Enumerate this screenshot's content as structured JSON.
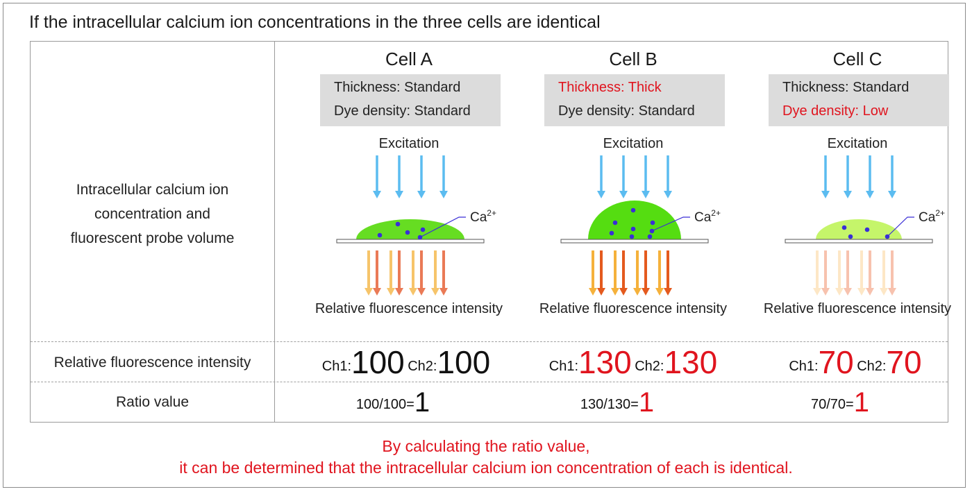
{
  "title": "If the intracellular calcium ion concentrations in the three cells are identical",
  "row_labels": {
    "concentration": [
      "Intracellular calcium ion",
      "concentration and",
      "fluorescent probe volume"
    ],
    "intensity": "Relative fluorescence intensity",
    "ratio": "Ratio value"
  },
  "common": {
    "excitation": "Excitation",
    "ion_label": "Ca",
    "ion_charge": "2+",
    "output_label": "Relative fluorescence intensity",
    "ch1": "Ch1:",
    "ch2": "Ch2:"
  },
  "cells": [
    {
      "name": "Cell A",
      "thickness": "Thickness: Standard",
      "dye_density": "Dye density: Standard",
      "thickness_highlight": false,
      "density_highlight": false,
      "ch1_value": "100",
      "ch2_value": "100",
      "ratio_expr": "100/100=",
      "ratio_value": "1",
      "colors": {
        "cell": "#66dd22",
        "arrow_a": "#f6c46a",
        "arrow_b": "#ea7a56"
      }
    },
    {
      "name": "Cell B",
      "thickness": "Thickness: Thick",
      "dye_density": "Dye density: Standard",
      "thickness_highlight": true,
      "density_highlight": false,
      "ch1_value": "130",
      "ch2_value": "130",
      "ratio_expr": "130/130=",
      "ratio_value": "1",
      "colors": {
        "cell": "#55dd11",
        "arrow_a": "#f5b13b",
        "arrow_b": "#e45a1e"
      }
    },
    {
      "name": "Cell C",
      "thickness": "Thickness: Standard",
      "dye_density": "Dye density: Low",
      "thickness_highlight": false,
      "density_highlight": true,
      "ch1_value": "70",
      "ch2_value": "70",
      "ratio_expr": "70/70=",
      "ratio_value": "1",
      "colors": {
        "cell": "#c5f56a",
        "arrow_a": "#fde7c6",
        "arrow_b": "#f7c2ae"
      }
    }
  ],
  "conclusion": [
    "By calculating the ratio value,",
    "it can be determined that the intracellular calcium ion concentration of each is identical."
  ],
  "style": {
    "excitation_arrow": "#5bbcf0",
    "ion_dot": "#3a2fd6",
    "highlight_text": "#e0141e"
  }
}
